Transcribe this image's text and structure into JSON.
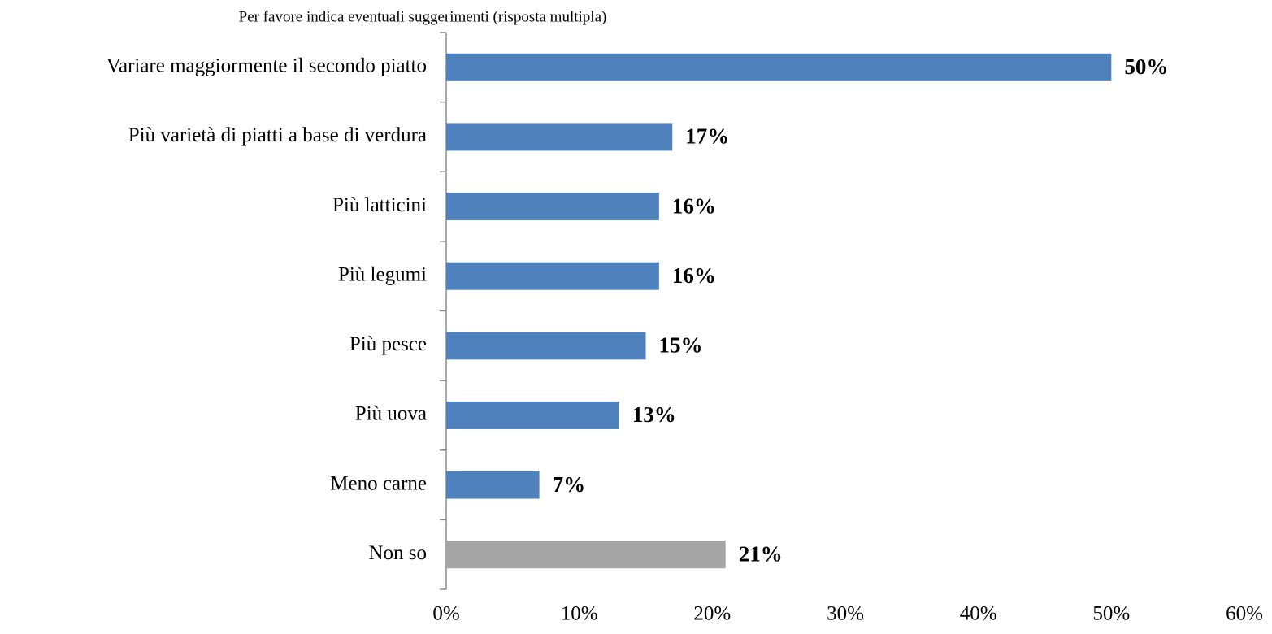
{
  "chart_data": {
    "type": "bar",
    "orientation": "horizontal",
    "title": "Per favore indica eventuali suggerimenti (risposta multipla)",
    "categories": [
      "Variare maggiormente il secondo piatto",
      "Più varietà di piatti a base di verdura",
      "Più latticini",
      "Più legumi",
      "Più pesce",
      "Più uova",
      "Meno carne",
      "Non so"
    ],
    "values": [
      50,
      17,
      16,
      16,
      15,
      13,
      7,
      21
    ],
    "value_labels": [
      "50%",
      "17%",
      "16%",
      "16%",
      "15%",
      "13%",
      "7%",
      "21%"
    ],
    "colors": [
      "#4f81bd",
      "#4f81bd",
      "#4f81bd",
      "#4f81bd",
      "#4f81bd",
      "#4f81bd",
      "#4f81bd",
      "#a5a5a5"
    ],
    "xlim": [
      0,
      60
    ],
    "xticks": [
      {
        "value": 0,
        "label": "0%"
      },
      {
        "value": 10,
        "label": "10%"
      },
      {
        "value": 20,
        "label": "20%"
      },
      {
        "value": 30,
        "label": "30%"
      },
      {
        "value": 40,
        "label": "40%"
      },
      {
        "value": 50,
        "label": "50%"
      },
      {
        "value": 60,
        "label": "60%"
      }
    ],
    "grid": false
  }
}
